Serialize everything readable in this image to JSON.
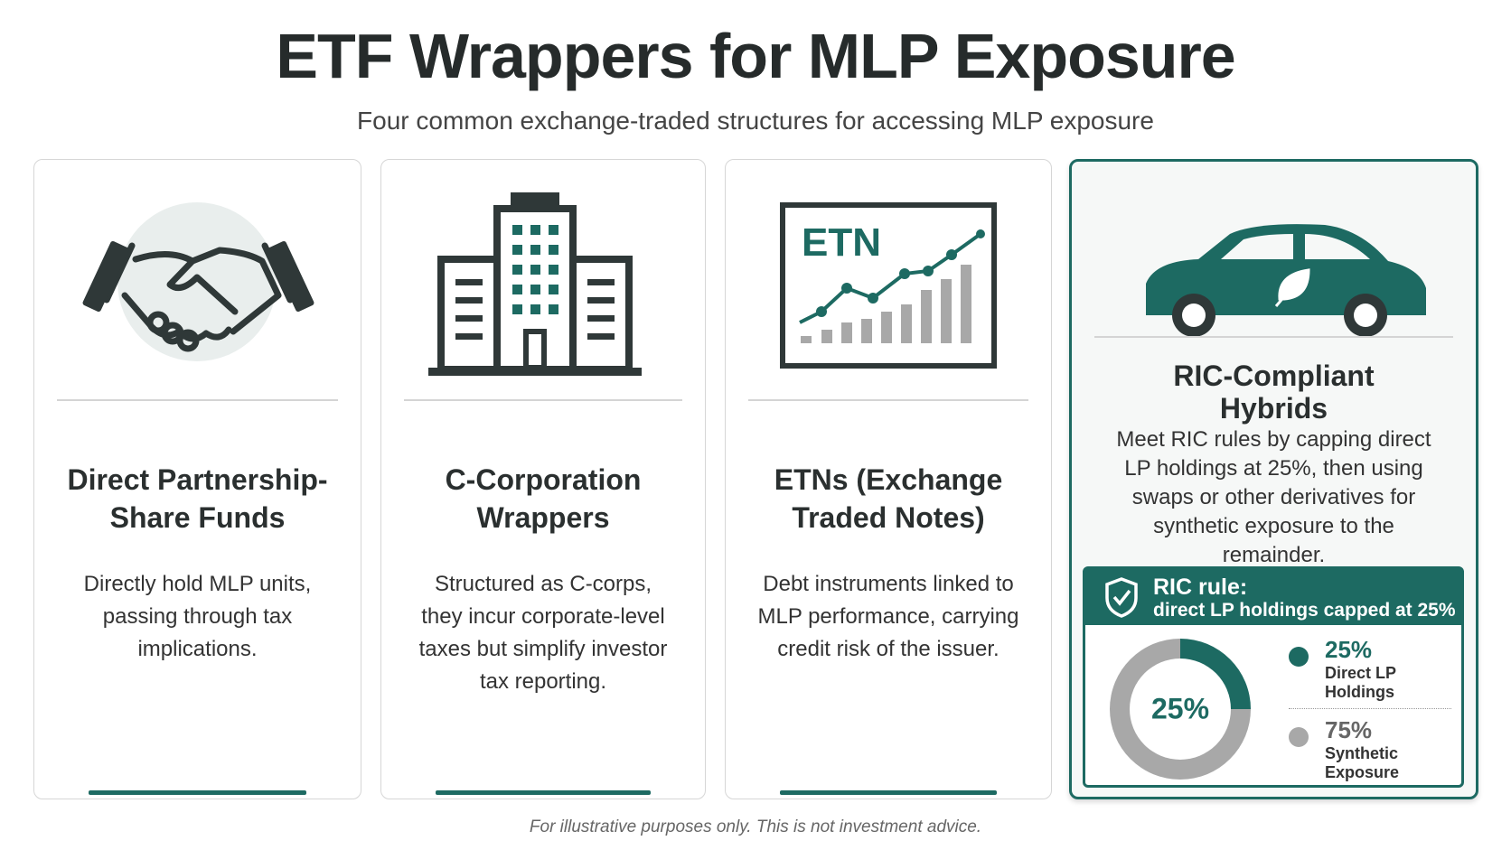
{
  "header": {
    "title": "ETF Wrappers for MLP Exposure",
    "subtitle": "Four common exchange-traded structures for accessing MLP exposure"
  },
  "cards": [
    {
      "title": "Direct Partnership-Share Funds",
      "description": "Directly hold MLP units, passing through tax implications."
    },
    {
      "title": "C-Corporation Wrappers",
      "description": "Structured as C-corps, they incur corporate-level taxes but simplify investor tax reporting."
    },
    {
      "title": "ETNs (Exchange Traded Notes)",
      "description": "Debt instruments linked to MLP performance, carrying credit risk of the issuer.",
      "icon_text": "ETN"
    },
    {
      "title": "RIC-Compliant Hybrids",
      "description": "Meet RIC rules by capping direct LP holdings at 25%, then using swaps or other derivatives for synthetic exposure to the remainder.",
      "rule": {
        "label": "RIC rule:",
        "text": "direct LP holdings capped at 25%"
      },
      "donut": {
        "values": [
          25,
          75
        ],
        "value_labels": [
          "25%",
          "75%"
        ],
        "names": [
          "Direct LP Holdings",
          "Synthetic Exposure"
        ],
        "colors": [
          "#1d6a62",
          "#a8a8a8"
        ]
      }
    }
  ],
  "footer": "For illustrative purposes only. This is not investment advice."
}
